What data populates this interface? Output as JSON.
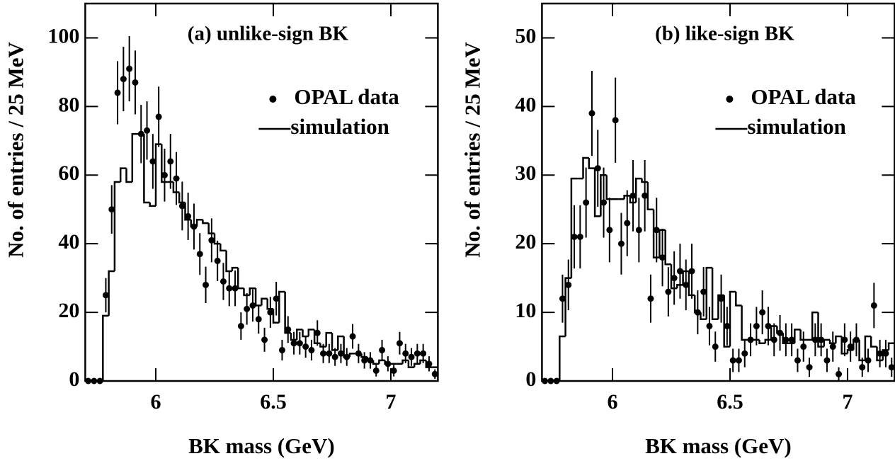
{
  "chart_data": [
    {
      "type": "histogram",
      "title": "(a) unlike-sign BK",
      "x_label": "BK mass (GeV)",
      "y_label": "No. of entries / 25 MeV",
      "xlim": [
        5.7,
        7.2
      ],
      "xticks": [
        6,
        6.5,
        7
      ],
      "ylim": [
        0,
        110
      ],
      "yticks": [
        0,
        20,
        40,
        60,
        80,
        100
      ],
      "legend": "upper right",
      "x": [
        5.7125,
        5.7375,
        5.7625,
        5.7875,
        5.8125,
        5.8375,
        5.8625,
        5.8875,
        5.9125,
        5.9375,
        5.9625,
        5.9875,
        6.0125,
        6.0375,
        6.0625,
        6.0875,
        6.1125,
        6.1375,
        6.1625,
        6.1875,
        6.2125,
        6.2375,
        6.2625,
        6.2875,
        6.3125,
        6.3375,
        6.3625,
        6.3875,
        6.4125,
        6.4375,
        6.4625,
        6.4875,
        6.5125,
        6.5375,
        6.5625,
        6.5875,
        6.6125,
        6.6375,
        6.6625,
        6.6875,
        6.7125,
        6.7375,
        6.7625,
        6.7875,
        6.8125,
        6.8375,
        6.8625,
        6.8875,
        6.9125,
        6.9375,
        6.9625,
        6.9875,
        7.0125,
        7.0375,
        7.0625,
        7.0875,
        7.1125,
        7.1375,
        7.1625,
        7.1875
      ],
      "series": [
        {
          "name": "OPAL data",
          "type": "scatter",
          "color": "#000000",
          "values": [
            0,
            0,
            0,
            25,
            50,
            84,
            88,
            91,
            87,
            72,
            73,
            64,
            77,
            60,
            64,
            59,
            51,
            48,
            45,
            37,
            28,
            41,
            35,
            29,
            27,
            27,
            16,
            21,
            22,
            18,
            12,
            20,
            24,
            9,
            15,
            11,
            11,
            10,
            9,
            14,
            8,
            8,
            7,
            8,
            7,
            13,
            8,
            6,
            6,
            3,
            9,
            5,
            3,
            11,
            8,
            7,
            8,
            8,
            5,
            2
          ],
          "errors": [
            0,
            0,
            0,
            5,
            7.1,
            9.2,
            9.4,
            9.5,
            9.3,
            8.5,
            8.5,
            8,
            8.8,
            7.7,
            8,
            7.7,
            7.1,
            6.9,
            6.7,
            6.1,
            5.3,
            6.4,
            5.9,
            5.4,
            5.2,
            5.2,
            4,
            4.6,
            4.7,
            4.2,
            3.5,
            4.5,
            4.9,
            3,
            3.9,
            3.3,
            3.3,
            3.2,
            3,
            3.7,
            2.8,
            2.8,
            2.6,
            2.8,
            2.6,
            3.6,
            2.8,
            2.4,
            2.4,
            1.7,
            3,
            2.2,
            1.7,
            3.3,
            2.8,
            2.6,
            2.8,
            2.8,
            2.2,
            1.4
          ]
        },
        {
          "name": "simulation",
          "type": "step",
          "color": "#000000",
          "values": [
            0,
            0,
            0,
            19,
            32,
            58,
            62,
            58,
            72,
            72,
            52,
            51,
            69,
            58,
            58,
            55,
            52,
            47,
            45,
            47,
            46,
            43,
            40,
            38,
            32,
            33,
            27,
            25,
            27,
            22,
            24,
            21,
            17,
            26,
            14,
            12,
            15,
            13,
            15,
            11,
            10,
            14,
            9,
            13,
            7,
            8,
            8,
            7,
            6,
            5,
            6,
            5,
            5,
            5,
            6,
            4,
            5,
            6,
            4,
            4
          ]
        }
      ]
    },
    {
      "type": "histogram",
      "title": "(b) like-sign BK",
      "x_label": "BK mass (GeV)",
      "y_label": "No. of entries / 25 MeV",
      "xlim": [
        5.7,
        7.2
      ],
      "xticks": [
        6,
        6.5,
        7
      ],
      "ylim": [
        0,
        55
      ],
      "yticks": [
        0,
        10,
        20,
        30,
        40,
        50
      ],
      "legend": "upper right",
      "x": [
        5.7125,
        5.7375,
        5.7625,
        5.7875,
        5.8125,
        5.8375,
        5.8625,
        5.8875,
        5.9125,
        5.9375,
        5.9625,
        5.9875,
        6.0125,
        6.0375,
        6.0625,
        6.0875,
        6.1125,
        6.1375,
        6.1625,
        6.1875,
        6.2125,
        6.2375,
        6.2625,
        6.2875,
        6.3125,
        6.3375,
        6.3625,
        6.3875,
        6.4125,
        6.4375,
        6.4625,
        6.4875,
        6.5125,
        6.5375,
        6.5625,
        6.5875,
        6.6125,
        6.6375,
        6.6625,
        6.6875,
        6.7125,
        6.7375,
        6.7625,
        6.7875,
        6.8125,
        6.8375,
        6.8625,
        6.8875,
        6.9125,
        6.9375,
        6.9625,
        6.9875,
        7.0125,
        7.0375,
        7.0625,
        7.0875,
        7.1125,
        7.1375,
        7.1625,
        7.1875
      ],
      "series": [
        {
          "name": "OPAL data",
          "type": "scatter",
          "color": "#000000",
          "values": [
            0,
            0,
            0,
            12,
            14,
            21,
            21,
            26,
            39,
            31,
            26,
            22,
            38,
            20,
            23,
            27,
            22,
            27,
            12,
            22,
            18,
            13,
            15,
            16,
            14,
            16,
            10,
            13,
            8,
            5,
            12,
            8,
            3,
            3,
            4,
            6,
            8,
            10,
            8,
            6,
            7,
            6,
            6,
            3,
            5,
            2,
            6,
            6,
            3,
            5,
            1,
            6,
            5,
            6,
            2,
            3,
            11,
            4,
            4,
            2
          ],
          "errors": [
            0,
            0,
            0,
            3.5,
            3.7,
            4.6,
            4.6,
            5.1,
            6.2,
            5.6,
            5.1,
            4.7,
            6.2,
            4.5,
            4.8,
            5.2,
            4.7,
            5.2,
            3.5,
            4.7,
            4.2,
            3.6,
            3.9,
            4,
            3.7,
            4,
            3.2,
            3.6,
            2.8,
            2.2,
            3.5,
            2.8,
            1.7,
            1.7,
            2,
            2.4,
            2.8,
            3.2,
            2.8,
            2.4,
            2.6,
            2.4,
            2.4,
            1.7,
            2.2,
            1.4,
            2.4,
            2.4,
            1.7,
            2.2,
            1,
            2.4,
            2.2,
            2.4,
            1.4,
            1.7,
            3.3,
            2,
            2,
            1.4
          ]
        },
        {
          "name": "simulation",
          "type": "step",
          "color": "#000000",
          "values": [
            0,
            0,
            0,
            6.5,
            15,
            29.5,
            29.5,
            32.5,
            31,
            24,
            30,
            26.5,
            26.5,
            26.5,
            27,
            26,
            29.5,
            29,
            25,
            18,
            22,
            17,
            13.5,
            14,
            16,
            12.5,
            10,
            9,
            16.5,
            9,
            12.5,
            5,
            13,
            11,
            6,
            6,
            6,
            5.5,
            6,
            8,
            7,
            5.5,
            5.5,
            7.5,
            6,
            6,
            10,
            5,
            6,
            5.5,
            6.5,
            4,
            4.5,
            6,
            3,
            6.5,
            5,
            3,
            4.5,
            5.5
          ]
        }
      ]
    }
  ]
}
